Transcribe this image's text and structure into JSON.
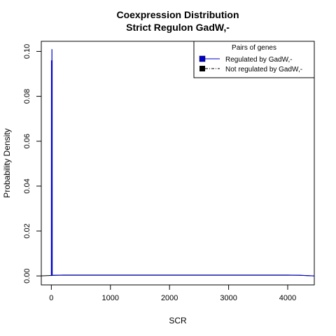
{
  "chart_data": {
    "type": "line",
    "title": "Coexpression Distribution",
    "subtitle": "Strict Regulon GadW,-",
    "xlabel": "SCR",
    "ylabel": "Probability Density",
    "xlim": [
      -170,
      4450
    ],
    "ylim": [
      -0.004,
      0.1045
    ],
    "x_ticks": [
      0,
      1000,
      2000,
      3000,
      4000
    ],
    "y_ticks": [
      0.0,
      0.02,
      0.04,
      0.06,
      0.08,
      0.1
    ],
    "x_tick_labels": [
      "0",
      "1000",
      "2000",
      "3000",
      "4000"
    ],
    "y_tick_labels": [
      "0.00",
      "0.02",
      "0.04",
      "0.06",
      "0.08",
      "0.10"
    ],
    "legend": {
      "title": "Pairs of genes",
      "position": "top-right",
      "entries": [
        {
          "label": "Regulated by GadW,-",
          "color": "#0000cc"
        },
        {
          "label": "Not regulated by GadW,-",
          "color": "#000000"
        }
      ]
    },
    "series": [
      {
        "name": "Regulated by GadW,-",
        "color": "#0000cc",
        "x": [
          -5,
          0,
          2,
          4,
          6,
          8,
          10,
          12,
          14,
          15,
          20,
          4200,
          4450
        ],
        "y": [
          0,
          0.0005,
          0.096,
          0.0005,
          0.096,
          0.0005,
          0.101,
          0.0005,
          0.096,
          0.0005,
          0.0003,
          0.0003,
          0
        ]
      },
      {
        "name": "Not regulated by GadW,-",
        "color": "#000000",
        "x": [
          -170,
          0,
          200,
          1000,
          2000,
          3000,
          4000,
          4200,
          4450
        ],
        "y": [
          0,
          0.0002,
          0.0004,
          0.0004,
          0.0004,
          0.0004,
          0.0004,
          0.0003,
          0
        ]
      }
    ]
  }
}
